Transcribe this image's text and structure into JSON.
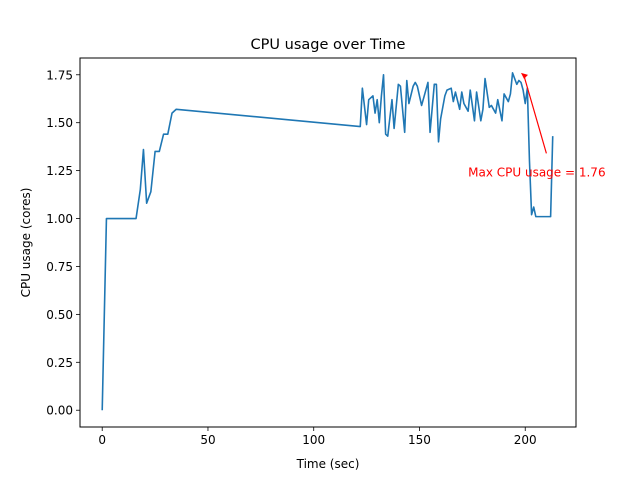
{
  "chart_data": {
    "type": "line",
    "title": "CPU usage over Time",
    "xlabel": "Time (sec)",
    "ylabel": "CPU usage (cores)",
    "xlim": [
      -10.5,
      224
    ],
    "ylim": [
      -0.0875,
      1.8375
    ],
    "xticks": [
      0,
      50,
      100,
      150,
      200
    ],
    "yticks": [
      0.0,
      0.25,
      0.5,
      0.75,
      1.0,
      1.25,
      1.5,
      1.75
    ],
    "ytick_labels": [
      "0.00",
      "0.25",
      "0.50",
      "0.75",
      "1.00",
      "1.25",
      "1.50",
      "1.75"
    ],
    "xtick_labels": [
      "0",
      "50",
      "100",
      "150",
      "200"
    ],
    "grid": false,
    "series": [
      {
        "color": "#1f77b4",
        "x": [
          0,
          2,
          4,
          6,
          8,
          10,
          12,
          14,
          16,
          18,
          19.5,
          21,
          23,
          25,
          27,
          29,
          31,
          33,
          35,
          122,
          123,
          125,
          126,
          128,
          129,
          130,
          131,
          132,
          133,
          134,
          135,
          137,
          138,
          140,
          141,
          143,
          144,
          145,
          147,
          148,
          149,
          151,
          152,
          154,
          155,
          157,
          158,
          159,
          160,
          162,
          163,
          165,
          166,
          167,
          169,
          170,
          171,
          173,
          174,
          176,
          177,
          179,
          180,
          181,
          183,
          184,
          186,
          187,
          189,
          190,
          192,
          193,
          194,
          196,
          197,
          198,
          199,
          200,
          201,
          202,
          203,
          204,
          205,
          206,
          207,
          208,
          209,
          210,
          211,
          212,
          213
        ],
        "y": [
          0.0,
          1.0,
          1.0,
          1.0,
          1.0,
          1.0,
          1.0,
          1.0,
          1.0,
          1.15,
          1.36,
          1.08,
          1.14,
          1.35,
          1.35,
          1.44,
          1.44,
          1.55,
          1.57,
          1.48,
          1.68,
          1.49,
          1.62,
          1.64,
          1.55,
          1.62,
          1.5,
          1.64,
          1.75,
          1.44,
          1.43,
          1.62,
          1.47,
          1.7,
          1.69,
          1.45,
          1.72,
          1.6,
          1.69,
          1.71,
          1.69,
          1.59,
          1.63,
          1.71,
          1.45,
          1.7,
          1.7,
          1.4,
          1.52,
          1.64,
          1.67,
          1.68,
          1.61,
          1.66,
          1.57,
          1.66,
          1.6,
          1.56,
          1.67,
          1.51,
          1.66,
          1.51,
          1.57,
          1.73,
          1.58,
          1.59,
          1.55,
          1.62,
          1.51,
          1.65,
          1.61,
          1.65,
          1.76,
          1.7,
          1.72,
          1.71,
          1.67,
          1.6,
          1.68,
          1.3,
          1.02,
          1.06,
          1.01,
          1.01,
          1.01,
          1.01,
          1.01,
          1.01,
          1.01,
          1.01,
          1.43
        ]
      }
    ],
    "annotation": {
      "text": "Max CPU usage = 1.76",
      "color": "#ff0000",
      "point": [
        198,
        1.76
      ],
      "text_anchor_data": [
        173,
        1.22
      ]
    }
  }
}
